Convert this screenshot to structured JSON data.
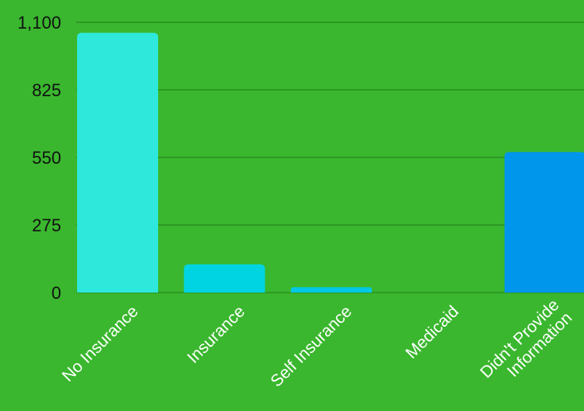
{
  "chart_data": {
    "type": "bar",
    "categories": [
      "No Insurance",
      "Insurance",
      "Self Insurance",
      "Medicaid",
      "Didn't Provide Information"
    ],
    "category_lines": [
      [
        "No Insurance"
      ],
      [
        "Insurance"
      ],
      [
        "Self Insurance"
      ],
      [
        "Medicaid"
      ],
      [
        "Didn't Provide",
        "Information"
      ]
    ],
    "values": [
      1057,
      115,
      22,
      0,
      572
    ],
    "bar_colors": [
      "#2ee8dc",
      "#00d4e3",
      "#00c8e4",
      "#00b3e6",
      "#0096ec"
    ],
    "yticks": [
      0,
      275,
      550,
      825,
      1100
    ],
    "ytick_labels": [
      "0",
      "275",
      "550",
      "825",
      "1,100"
    ],
    "ylim": [
      0,
      1100
    ],
    "title": "",
    "xlabel": "",
    "ylabel": "",
    "grid": true,
    "legend": "none",
    "background": "#3ab72e",
    "grid_color": "#2a8f22"
  }
}
